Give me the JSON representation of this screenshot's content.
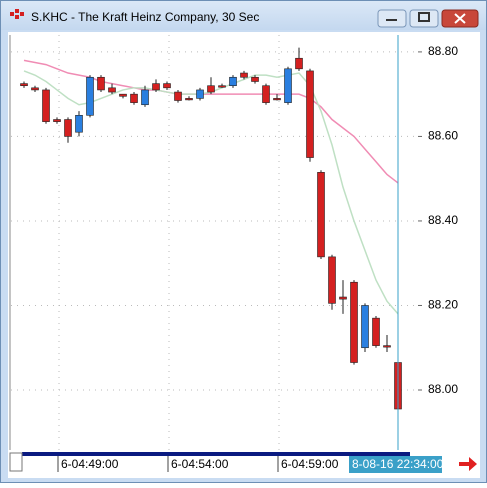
{
  "chart_data": {
    "type": "candlestick",
    "title": "S.KHC - The Kraft Heinz Company, 30 Sec",
    "open": [
      88.725,
      88.715,
      88.71,
      88.64,
      88.64,
      88.61,
      88.65,
      88.74,
      88.715,
      88.7,
      88.7,
      88.675,
      88.725,
      88.725,
      88.705,
      88.69,
      88.69,
      88.72,
      88.72,
      88.72,
      88.75,
      88.74,
      88.72,
      88.69,
      88.68,
      88.785,
      88.755,
      88.515,
      88.315,
      88.22,
      88.255,
      88.1,
      88.17,
      88.105,
      88.065
    ],
    "high": [
      88.73,
      88.72,
      88.715,
      88.645,
      88.645,
      88.66,
      88.745,
      88.745,
      88.725,
      88.7,
      88.705,
      88.72,
      88.735,
      88.73,
      88.71,
      88.695,
      88.715,
      88.74,
      88.725,
      88.745,
      88.755,
      88.745,
      88.725,
      88.7,
      88.765,
      88.81,
      88.76,
      88.52,
      88.32,
      88.26,
      88.26,
      88.205,
      88.175,
      88.13,
      88.08
    ],
    "low": [
      88.715,
      88.705,
      88.63,
      88.63,
      88.585,
      88.6,
      88.645,
      88.705,
      88.7,
      88.69,
      88.675,
      88.67,
      88.705,
      88.71,
      88.68,
      88.685,
      88.685,
      88.7,
      88.715,
      88.715,
      88.735,
      88.725,
      88.675,
      88.685,
      88.675,
      88.755,
      88.54,
      88.31,
      88.19,
      88.18,
      88.06,
      88.09,
      88.1,
      88.09,
      87.88
    ],
    "close": [
      88.72,
      88.71,
      88.635,
      88.635,
      88.6,
      88.65,
      88.74,
      88.71,
      88.705,
      88.695,
      88.68,
      88.71,
      88.71,
      88.715,
      88.685,
      88.69,
      88.71,
      88.705,
      88.72,
      88.74,
      88.74,
      88.73,
      88.68,
      88.69,
      88.76,
      88.76,
      88.55,
      88.315,
      88.205,
      88.215,
      88.065,
      88.2,
      88.105,
      88.105,
      87.955
    ],
    "up_color": "#2a7fe0",
    "down_color": "#d42020",
    "overlays": [
      {
        "color": "#f08cb4",
        "values": [
          88.78,
          88.775,
          88.77,
          88.76,
          88.75,
          88.745,
          88.74,
          88.73,
          88.725,
          88.72,
          88.715,
          88.71,
          88.71,
          88.705,
          88.7,
          88.7,
          88.7,
          88.7,
          88.7,
          88.7,
          88.7,
          88.7,
          88.7,
          88.7,
          88.7,
          88.7,
          88.69,
          88.67,
          88.64,
          88.62,
          88.6,
          88.57,
          88.54,
          88.51,
          88.49
        ]
      },
      {
        "color": "#bfe0c4",
        "values": [
          88.755,
          88.745,
          88.73,
          88.71,
          88.69,
          88.675,
          88.68,
          88.69,
          88.7,
          88.71,
          88.715,
          88.715,
          88.71,
          88.705,
          88.7,
          88.7,
          88.7,
          88.705,
          88.715,
          88.725,
          88.735,
          88.745,
          88.745,
          88.74,
          88.745,
          88.75,
          88.72,
          88.66,
          88.58,
          88.48,
          88.4,
          88.33,
          88.26,
          88.21,
          88.18
        ]
      }
    ],
    "ylim": [
      87.858,
      88.84
    ],
    "yticks": [
      {
        "value": 88.8,
        "label": "88.80"
      },
      {
        "value": 88.6,
        "label": "88.60"
      },
      {
        "value": 88.4,
        "label": "88.40"
      },
      {
        "value": 88.2,
        "label": "88.20"
      },
      {
        "value": 88,
        "label": "88.00"
      }
    ],
    "grid": true,
    "xtick_labels": [
      "6-04:49:00",
      "6-04:54:00",
      "6-04:59:00"
    ],
    "cursor_label": "8-08-16 22:34:00",
    "cursor_color": "#3aa0c8"
  }
}
